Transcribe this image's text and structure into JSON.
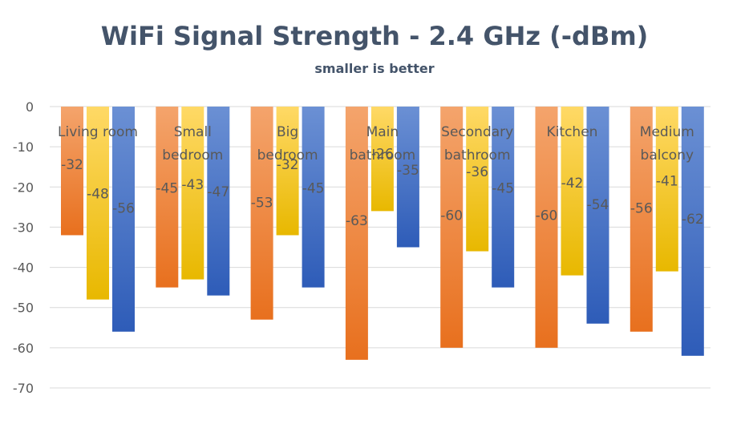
{
  "chart_data": {
    "type": "bar",
    "title": "WiFi Signal Strength - 2.4 GHz (-dBm)",
    "subtitle": "smaller is better",
    "categories": [
      [
        "Living room"
      ],
      [
        "Small",
        "bedroom"
      ],
      [
        "Big",
        "bedroom"
      ],
      [
        "Main",
        "bathroom"
      ],
      [
        "Secondary",
        "bathroom"
      ],
      [
        "Kitchen"
      ],
      [
        "Medium",
        "balcony"
      ]
    ],
    "series": [
      {
        "values": [
          -32,
          -45,
          -53,
          -63,
          -60,
          -60,
          -56
        ],
        "color": "#ed7d31"
      },
      {
        "values": [
          -48,
          -43,
          -32,
          -26,
          -36,
          -42,
          -41
        ],
        "color": "#ffc000"
      },
      {
        "values": [
          -56,
          -47,
          -45,
          -35,
          -45,
          -54,
          -62
        ],
        "color": "#4472c4"
      }
    ],
    "ylim": [
      -70,
      0
    ],
    "yticks": [
      0,
      -10,
      -20,
      -30,
      -40,
      -50,
      -60,
      -70
    ],
    "grid": true,
    "legend": "none"
  }
}
